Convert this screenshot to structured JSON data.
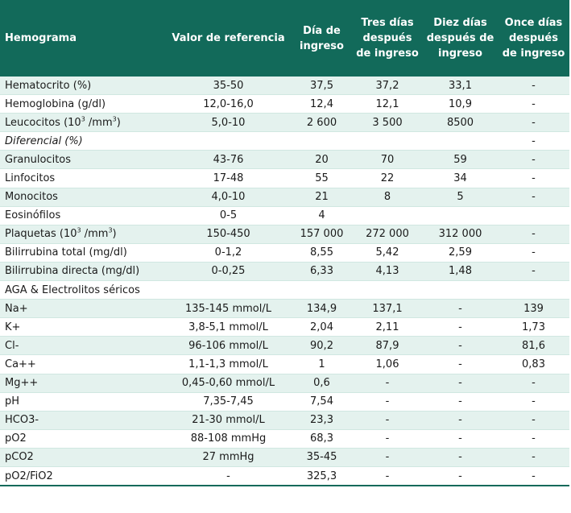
{
  "table": {
    "headers": [
      {
        "line1": "Hemograma",
        "line2": "",
        "line3": ""
      },
      {
        "line1": "Valor de referencia",
        "line2": "",
        "line3": ""
      },
      {
        "line1": "Día de",
        "line2": "ingreso",
        "line3": ""
      },
      {
        "line1": "Tres días",
        "line2": "después",
        "line3": "de ingreso"
      },
      {
        "line1": "Diez días",
        "line2": "después de",
        "line3": "ingreso"
      },
      {
        "line1": "Once días",
        "line2": "después",
        "line3": "de ingreso"
      }
    ],
    "rows": [
      {
        "label": "Hematocrito (%)",
        "ref": "35-50",
        "d1": "37,5",
        "d3": "37,2",
        "d10": "33,1",
        "d11": "-"
      },
      {
        "label": "Hemoglobina (g/dl)",
        "ref": "12,0-16,0",
        "d1": "12,4",
        "d3": "12,1",
        "d10": "10,9",
        "d11": "-"
      },
      {
        "label_pre": "Leucocitos (10",
        "label_sup1": "3",
        "label_mid": " /mm",
        "label_sup2": "3",
        "label_post": ")",
        "ref": "5,0-10",
        "d1": "2 600",
        "d3": "3 500",
        "d10": "8500",
        "d11": "-"
      },
      {
        "label": "Diferencial (%)",
        "ref": "",
        "d1": "",
        "d3": "",
        "d10": "",
        "d11": "-"
      },
      {
        "label": "Granulocitos",
        "ref": "43-76",
        "d1": "20",
        "d3": "70",
        "d10": "59",
        "d11": "-"
      },
      {
        "label": "Linfocitos",
        "ref": "17-48",
        "d1": "55",
        "d3": "22",
        "d10": "34",
        "d11": "-"
      },
      {
        "label": "Monocitos",
        "ref": "4,0-10",
        "d1": "21",
        "d3": "8",
        "d10": "5",
        "d11": "-"
      },
      {
        "label": "Eosinófilos",
        "ref": "0-5",
        "d1": "4",
        "d3": "",
        "d10": "",
        "d11": ""
      },
      {
        "label_pre": "Plaquetas (10",
        "label_sup1": "3",
        "label_mid": " /mm",
        "label_sup2": "3",
        "label_post": ")",
        "ref": "150-450",
        "d1": "157 000",
        "d3": "272 000",
        "d10": "312 000",
        "d11": "-"
      },
      {
        "label": "Bilirrubina total (mg/dl)",
        "ref": "0-1,2",
        "d1": "8,55",
        "d3": "5,42",
        "d10": "2,59",
        "d11": "-"
      },
      {
        "label": "Bilirrubina directa (mg/dl)",
        "ref": "0-0,25",
        "d1": "6,33",
        "d3": "4,13",
        "d10": "1,48",
        "d11": "-"
      },
      {
        "label": "AGA & Electrolitos séricos",
        "ref": "",
        "d1": "",
        "d3": "",
        "d10": "",
        "d11": ""
      },
      {
        "label": "Na+",
        "ref": "135-145 mmol/L",
        "d1": "134,9",
        "d3": "137,1",
        "d10": "-",
        "d11": "139"
      },
      {
        "label": "K+",
        "ref": "3,8-5,1 mmol/L",
        "d1": "2,04",
        "d3": "2,11",
        "d10": "-",
        "d11": "1,73"
      },
      {
        "label": "Cl-",
        "ref": "96-106 mmol/L",
        "d1": "90,2",
        "d3": "87,9",
        "d10": "-",
        "d11": "81,6"
      },
      {
        "label": "Ca++",
        "ref": "1,1-1,3 mmol/L",
        "d1": "1",
        "d3": "1,06",
        "d10": "-",
        "d11": "0,83"
      },
      {
        "label": "Mg++",
        "ref": "0,45-0,60 mmol/L",
        "d1": "0,6",
        "d3": "-",
        "d10": "-",
        "d11": "-"
      },
      {
        "label": "pH",
        "ref": "7,35-7,45",
        "d1": "7,54",
        "d3": "-",
        "d10": "-",
        "d11": "-"
      },
      {
        "label": "HCO3-",
        "ref": "21-30 mmol/L",
        "d1": "23,3",
        "d3": "-",
        "d10": "-",
        "d11": "-"
      },
      {
        "label": "pO2",
        "ref": "88-108 mmHg",
        "d1": "68,3",
        "d3": "-",
        "d10": "-",
        "d11": "-"
      },
      {
        "label": "pCO2",
        "ref": "27 mmHg",
        "d1": "35-45",
        "d3": "-",
        "d10": "-",
        "d11": "-"
      },
      {
        "label": "pO2/FiO2",
        "ref": "-",
        "d1": "325,3",
        "d3": "-",
        "d10": "-",
        "d11": "-"
      }
    ]
  }
}
